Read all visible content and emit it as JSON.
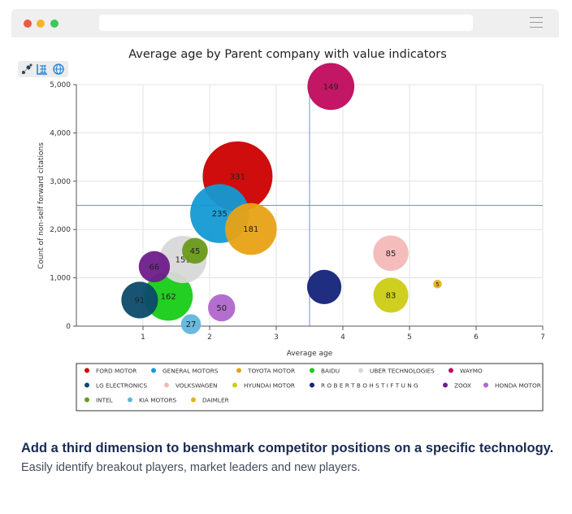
{
  "window": {
    "dots": [
      "#e95b3f",
      "#f5b527",
      "#3dc85a"
    ],
    "toolbar_icons": [
      "scatter-select-icon",
      "grid-chart-icon",
      "globe-icon"
    ]
  },
  "chart_data": {
    "type": "scatter",
    "subtype": "bubble",
    "title": "Average age by Parent company with value indicators",
    "xlabel": "Average age",
    "ylabel": "Count of non-self forward citations",
    "xlim": [
      0,
      7
    ],
    "ylim": [
      0,
      5000
    ],
    "xticks": [
      "1",
      "2",
      "3",
      "4",
      "5",
      "6",
      "7"
    ],
    "yticks": [
      "0",
      "1,000",
      "2,000",
      "3,000",
      "4,000",
      "5,000"
    ],
    "reference_lines": {
      "x": 3.5,
      "y": 2500
    },
    "grid": true,
    "legend_position": "bottom",
    "series": [
      {
        "name": "FORD MOTOR",
        "color": "#cc0000",
        "x": 2.42,
        "y": 3100,
        "size": 331,
        "label": "331"
      },
      {
        "name": "GENERAL MOTORS",
        "color": "#139ad3",
        "x": 2.15,
        "y": 2330,
        "size": 235,
        "label": "235"
      },
      {
        "name": "TOYOTA MOTOR",
        "color": "#e8a215",
        "x": 2.62,
        "y": 2010,
        "size": 181,
        "label": "181"
      },
      {
        "name": "BAIDU",
        "color": "#16cc16",
        "x": 1.38,
        "y": 620,
        "size": 162,
        "label": "162"
      },
      {
        "name": "UBER TECHNOLOGIES",
        "color": "#d8d8d8",
        "x": 1.6,
        "y": 1380,
        "size": 151,
        "label": "151"
      },
      {
        "name": "WAYMO",
        "color": "#c0095c",
        "x": 3.82,
        "y": 4960,
        "size": 149,
        "label": "149"
      },
      {
        "name": "LG ELECTRONICS",
        "color": "#0c4a6a",
        "x": 0.95,
        "y": 540,
        "size": 91,
        "label": "91"
      },
      {
        "name": "VOLKSWAGEN",
        "color": "#f4b8b8",
        "x": 4.72,
        "y": 1510,
        "size": 85,
        "label": "85"
      },
      {
        "name": "HYUNDAI MOTOR",
        "color": "#cccc14",
        "x": 4.72,
        "y": 640,
        "size": 83,
        "label": "83"
      },
      {
        "name": "ROBERTBOHSTIFTUNG",
        "color": "#13237a",
        "x": 3.72,
        "y": 810,
        "size": 80,
        "label": ""
      },
      {
        "name": "ZOOX",
        "color": "#6e1c8a",
        "x": 1.17,
        "y": 1230,
        "size": 66,
        "label": "66"
      },
      {
        "name": "HONDA MOTOR",
        "color": "#b066cc",
        "x": 2.18,
        "y": 380,
        "size": 50,
        "label": "50"
      },
      {
        "name": "INTEL",
        "color": "#6a9a1a",
        "x": 1.78,
        "y": 1560,
        "size": 45,
        "label": "45"
      },
      {
        "name": "KIA MOTORS",
        "color": "#62b6dc",
        "x": 1.72,
        "y": 40,
        "size": 27,
        "label": "27"
      },
      {
        "name": "DAIMLER",
        "color": "#e8b020",
        "x": 5.42,
        "y": 870,
        "size": 5,
        "label": "5"
      }
    ],
    "legend_labels": [
      "FORD MOTOR",
      "GENERAL MOTORS",
      "TOYOTA MOTOR",
      "BAIDU",
      "UBER TECHNOLOGIES",
      "WAYMO",
      "LG ELECTRONICS",
      "VOLKSWAGEN",
      "HYUNDAI MOTOR",
      "R O B E R T B O H S T I F T U N G",
      "ZOOX",
      "HONDA MOTOR",
      "INTEL",
      "KIA MOTORS",
      "DAIMLER"
    ],
    "colors": {
      "reference_line": "#7b83ff",
      "grid": "#e3e3e3",
      "axis": "#555555"
    }
  },
  "caption": {
    "title": "Add a third dimension to benshmark competitor positions on a specific technology.",
    "subtitle": "Easily identify breakout players, market leaders and new players."
  }
}
